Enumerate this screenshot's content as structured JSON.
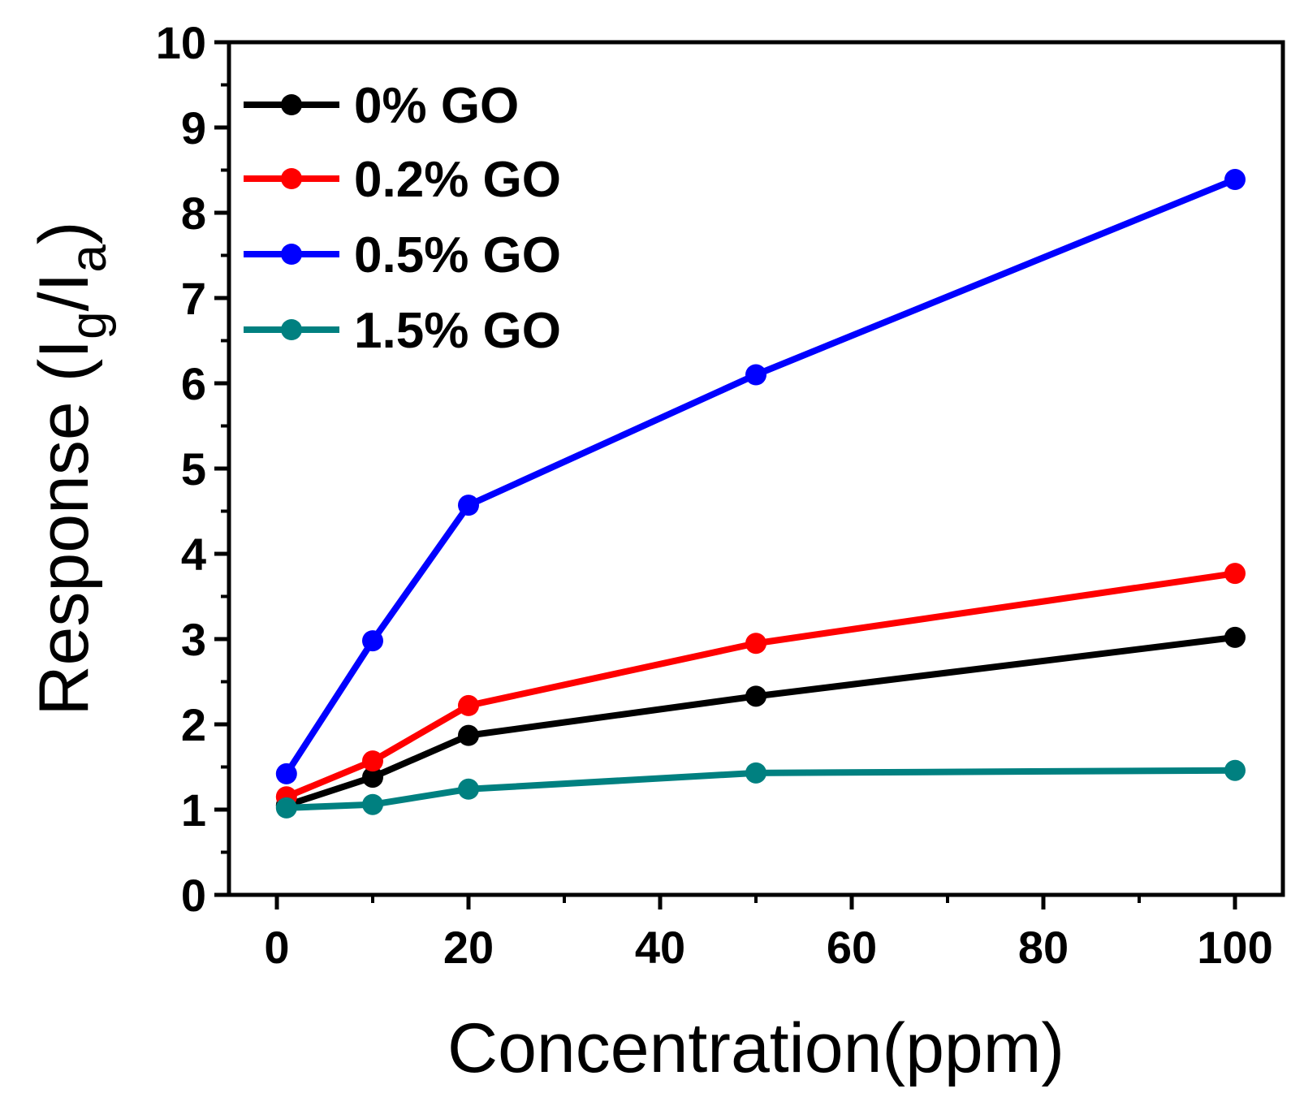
{
  "chart_data": {
    "type": "line",
    "title": "",
    "xlabel": "Concentration(ppm)",
    "ylabel_main": "Response (I",
    "ylabel_sub1": "g",
    "ylabel_mid": "/I",
    "ylabel_sub2": "a",
    "ylabel_end": ")",
    "xlim": [
      -5,
      105
    ],
    "ylim": [
      0,
      10
    ],
    "x_ticks": [
      0,
      20,
      40,
      60,
      80,
      100
    ],
    "y_ticks": [
      0,
      1,
      2,
      3,
      4,
      5,
      6,
      7,
      8,
      9,
      10
    ],
    "x": [
      1,
      10,
      20,
      50,
      100
    ],
    "grid": false,
    "legend_position": "top-left",
    "series": [
      {
        "name": "0% GO",
        "color": "#000000",
        "values": [
          1.05,
          1.38,
          1.87,
          2.33,
          3.02
        ]
      },
      {
        "name": "0.2% GO",
        "color": "#ff0000",
        "values": [
          1.15,
          1.57,
          2.22,
          2.95,
          3.77
        ]
      },
      {
        "name": "0.5% GO",
        "color": "#0000ff",
        "values": [
          1.42,
          2.98,
          4.57,
          6.1,
          8.39
        ]
      },
      {
        "name": "1.5% GO",
        "color": "#008080",
        "values": [
          1.02,
          1.06,
          1.24,
          1.43,
          1.46
        ]
      }
    ]
  }
}
